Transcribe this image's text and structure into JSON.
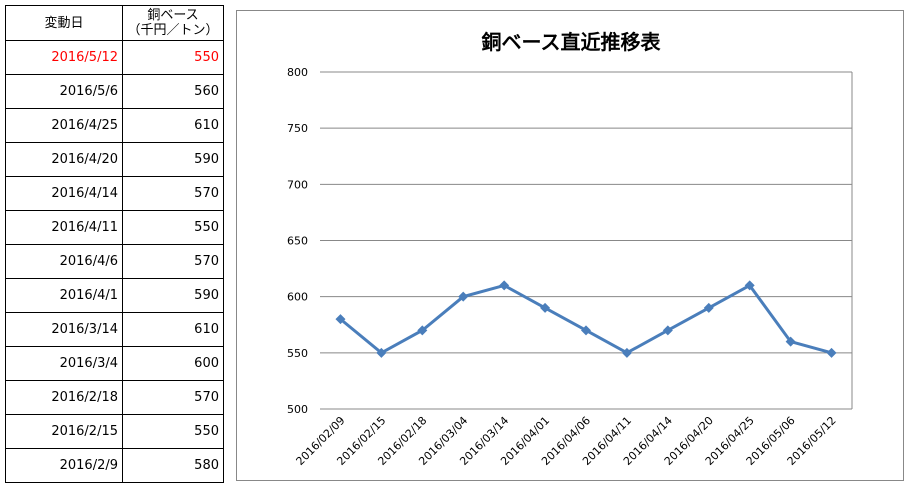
{
  "table": {
    "headers": [
      "変動日",
      "銅ベース\n（千円／トン）"
    ],
    "rows": [
      [
        "2016/5/12",
        "550"
      ],
      [
        "2016/5/6",
        "560"
      ],
      [
        "2016/4/25",
        "610"
      ],
      [
        "2016/4/20",
        "590"
      ],
      [
        "2016/4/14",
        "570"
      ],
      [
        "2016/4/11",
        "550"
      ],
      [
        "2016/4/6",
        "570"
      ],
      [
        "2016/4/1",
        "590"
      ],
      [
        "2016/3/14",
        "610"
      ],
      [
        "2016/3/4",
        "600"
      ],
      [
        "2016/2/18",
        "570"
      ],
      [
        "2016/2/15",
        "550"
      ],
      [
        "2016/2/9",
        "580"
      ]
    ],
    "highlight_color": "#ff0000"
  },
  "chart_data": {
    "type": "line",
    "title": "銅ベース直近推移表",
    "categories": [
      "2016/02/09",
      "2016/02/15",
      "2016/02/18",
      "2016/03/04",
      "2016/03/14",
      "2016/04/01",
      "2016/04/06",
      "2016/04/11",
      "2016/04/14",
      "2016/04/20",
      "2016/04/25",
      "2016/05/06",
      "2016/05/12"
    ],
    "values": [
      580,
      550,
      570,
      600,
      610,
      590,
      570,
      550,
      570,
      590,
      610,
      560,
      550
    ],
    "ylim": [
      500,
      800
    ],
    "yticks": [
      500,
      550,
      600,
      650,
      700,
      750,
      800
    ],
    "grid": true,
    "legend": "none",
    "color": "#4a7ebb"
  }
}
